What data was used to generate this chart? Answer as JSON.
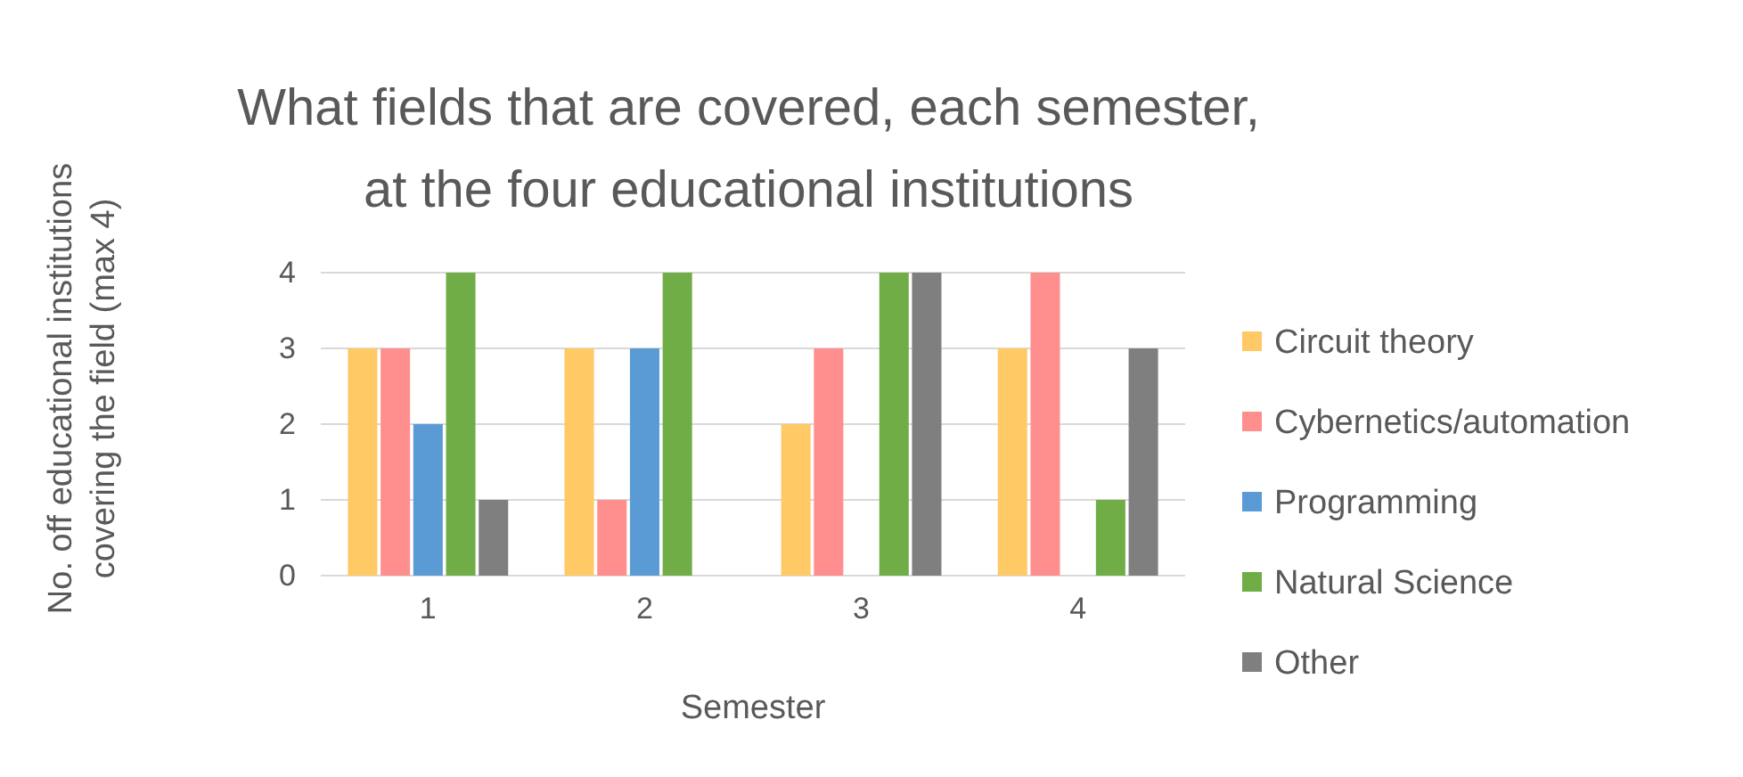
{
  "chart_data": {
    "type": "bar",
    "title": "What fields that are covered, each semester, at the four educational institutions",
    "xlabel": "Semester",
    "ylabel": "No. off educational institutions covering the field (max 4)",
    "categories": [
      "1",
      "2",
      "3",
      "4"
    ],
    "series": [
      {
        "name": "Circuit theory",
        "color": "#ffc966",
        "values": [
          3,
          3,
          2,
          3
        ]
      },
      {
        "name": "Cybernetics/automation",
        "color": "#ff8f8f",
        "values": [
          3,
          1,
          3,
          4
        ]
      },
      {
        "name": "Programming",
        "color": "#5b9bd5",
        "values": [
          2,
          3,
          0,
          0
        ]
      },
      {
        "name": "Natural Science",
        "color": "#70ad47",
        "values": [
          4,
          4,
          4,
          1
        ]
      },
      {
        "name": "Other",
        "color": "#7f7f7f",
        "values": [
          1,
          0,
          4,
          3
        ]
      }
    ],
    "ylim": [
      0,
      4
    ],
    "yticks": [
      0,
      1,
      2,
      3,
      4
    ],
    "grid": "y",
    "legend": "right"
  }
}
